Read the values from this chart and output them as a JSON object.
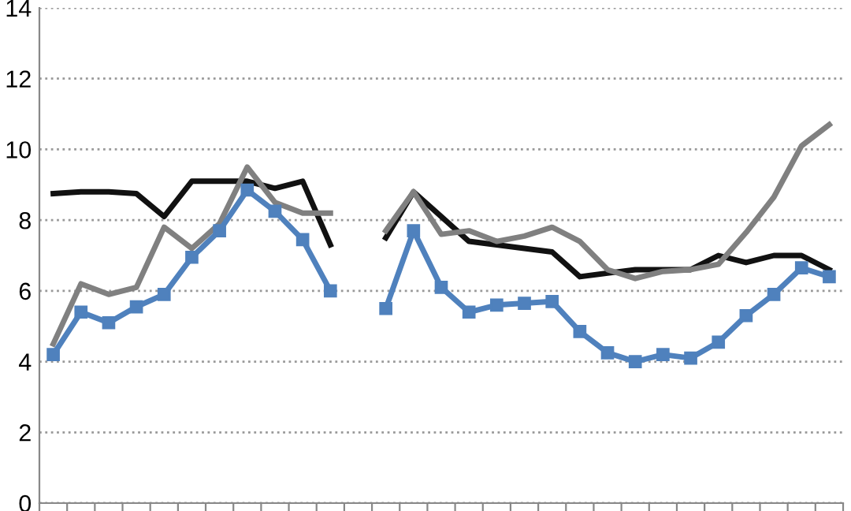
{
  "chart_data": {
    "type": "line",
    "categories": [
      null,
      null,
      null,
      null,
      null,
      null,
      null,
      null,
      null,
      null,
      null,
      null,
      null,
      null,
      null,
      null,
      null,
      null,
      null,
      null,
      null,
      null,
      null,
      null,
      null,
      null,
      null,
      null,
      null
    ],
    "series": [
      {
        "color": "#111111",
        "marker": "none",
        "values": [
          8.75,
          8.8,
          8.8,
          8.75,
          8.1,
          9.1,
          9.1,
          9.1,
          8.9,
          9.1,
          7.3,
          null,
          null,
          null,
          null,
          null,
          null,
          null,
          null,
          null,
          null,
          null,
          null,
          null,
          null,
          null,
          null,
          null,
          null
        ]
      },
      {
        "color": "#808080",
        "marker": "none",
        "values": [
          4.5,
          6.2,
          5.9,
          6.1,
          7.8,
          7.2,
          7.9,
          9.5,
          8.5,
          8.2,
          8.2,
          null,
          null,
          null,
          null,
          null,
          null,
          null,
          null,
          null,
          null,
          null,
          null,
          null,
          null,
          null,
          null,
          null,
          null
        ]
      },
      {
        "color": "#4f81bd",
        "marker": "square",
        "values": [
          4.2,
          5.4,
          5.1,
          5.55,
          5.9,
          6.95,
          7.7,
          8.85,
          8.25,
          7.45,
          6.0,
          null,
          null,
          null,
          null,
          null,
          null,
          null,
          null,
          null,
          null,
          null,
          null,
          null,
          null,
          null,
          null,
          null,
          null
        ]
      },
      {
        "color": "#111111",
        "marker": "none",
        "values": [
          null,
          null,
          null,
          null,
          null,
          null,
          null,
          null,
          null,
          null,
          null,
          null,
          7.5,
          8.8,
          8.1,
          7.4,
          7.3,
          7.2,
          7.1,
          6.4,
          6.5,
          6.6,
          6.6,
          6.6,
          7.0,
          6.8,
          7.0,
          7.0,
          6.6
        ]
      },
      {
        "color": "#808080",
        "marker": "none",
        "values": [
          null,
          null,
          null,
          null,
          null,
          null,
          null,
          null,
          null,
          null,
          null,
          null,
          7.7,
          8.8,
          7.6,
          7.7,
          7.4,
          7.55,
          7.8,
          7.4,
          6.6,
          6.35,
          6.55,
          6.6,
          6.75,
          7.65,
          8.65,
          10.1,
          10.7
        ]
      },
      {
        "color": "#4f81bd",
        "marker": "square",
        "values": [
          null,
          null,
          null,
          null,
          null,
          null,
          null,
          null,
          null,
          null,
          null,
          null,
          5.5,
          7.7,
          6.1,
          5.4,
          5.6,
          5.65,
          5.7,
          4.85,
          4.25,
          4.0,
          4.2,
          4.1,
          4.55,
          5.3,
          5.9,
          6.65,
          6.4
        ]
      }
    ],
    "ylim": [
      0,
      14
    ],
    "yticks": [
      0,
      2,
      4,
      6,
      8,
      10,
      12,
      14
    ],
    "grid": "y",
    "legend": false,
    "line_style": "solid"
  }
}
